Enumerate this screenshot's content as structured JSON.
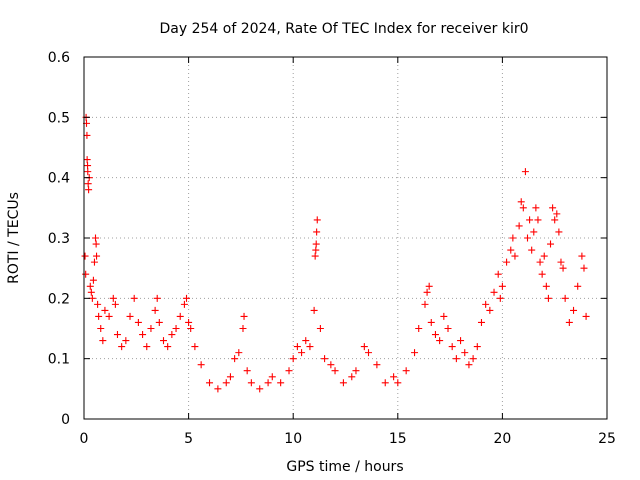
{
  "chart_data": {
    "type": "scatter",
    "title": "Day 254 of 2024, Rate Of TEC Index for receiver kir0",
    "xlabel": "GPS time / hours",
    "ylabel": "ROTI / TECUs",
    "xlim": [
      0,
      25
    ],
    "ylim": [
      0,
      0.6
    ],
    "xticks": [
      0,
      5,
      10,
      15,
      20,
      25
    ],
    "yticks": [
      0,
      0.1,
      0.2,
      0.3,
      0.4,
      0.5,
      0.6
    ],
    "xtick_labels": [
      "0",
      "5",
      "10",
      "15",
      "20",
      "25"
    ],
    "ytick_labels": [
      "0",
      "0.1",
      "0.2",
      "0.3",
      "0.4",
      "0.5",
      "0.6"
    ],
    "grid": true,
    "marker": "+",
    "color": "#ff0000",
    "series": [
      {
        "name": "ROTI",
        "points": [
          [
            0.05,
            0.27
          ],
          [
            0.08,
            0.24
          ],
          [
            0.1,
            0.5
          ],
          [
            0.12,
            0.49
          ],
          [
            0.14,
            0.47
          ],
          [
            0.15,
            0.43
          ],
          [
            0.17,
            0.42
          ],
          [
            0.18,
            0.41
          ],
          [
            0.2,
            0.39
          ],
          [
            0.22,
            0.38
          ],
          [
            0.25,
            0.4
          ],
          [
            0.3,
            0.22
          ],
          [
            0.35,
            0.21
          ],
          [
            0.4,
            0.2
          ],
          [
            0.45,
            0.23
          ],
          [
            0.5,
            0.26
          ],
          [
            0.55,
            0.3
          ],
          [
            0.58,
            0.29
          ],
          [
            0.6,
            0.27
          ],
          [
            0.65,
            0.19
          ],
          [
            0.7,
            0.17
          ],
          [
            0.8,
            0.15
          ],
          [
            0.9,
            0.13
          ],
          [
            1.0,
            0.18
          ],
          [
            1.2,
            0.17
          ],
          [
            1.4,
            0.2
          ],
          [
            1.5,
            0.19
          ],
          [
            1.6,
            0.14
          ],
          [
            1.8,
            0.12
          ],
          [
            2.0,
            0.13
          ],
          [
            2.2,
            0.17
          ],
          [
            2.4,
            0.2
          ],
          [
            2.6,
            0.16
          ],
          [
            2.8,
            0.14
          ],
          [
            3.0,
            0.12
          ],
          [
            3.2,
            0.15
          ],
          [
            3.4,
            0.18
          ],
          [
            3.5,
            0.2
          ],
          [
            3.6,
            0.16
          ],
          [
            3.8,
            0.13
          ],
          [
            4.0,
            0.12
          ],
          [
            4.2,
            0.14
          ],
          [
            4.4,
            0.15
          ],
          [
            4.6,
            0.17
          ],
          [
            4.8,
            0.19
          ],
          [
            4.9,
            0.2
          ],
          [
            5.0,
            0.16
          ],
          [
            5.1,
            0.15
          ],
          [
            5.3,
            0.12
          ],
          [
            5.6,
            0.09
          ],
          [
            6.0,
            0.06
          ],
          [
            6.4,
            0.05
          ],
          [
            6.8,
            0.06
          ],
          [
            7.0,
            0.07
          ],
          [
            7.2,
            0.1
          ],
          [
            7.4,
            0.11
          ],
          [
            7.6,
            0.15
          ],
          [
            7.65,
            0.17
          ],
          [
            7.8,
            0.08
          ],
          [
            8.0,
            0.06
          ],
          [
            8.4,
            0.05
          ],
          [
            8.8,
            0.06
          ],
          [
            9.0,
            0.07
          ],
          [
            9.4,
            0.06
          ],
          [
            9.8,
            0.08
          ],
          [
            10.0,
            0.1
          ],
          [
            10.2,
            0.12
          ],
          [
            10.4,
            0.11
          ],
          [
            10.6,
            0.13
          ],
          [
            10.8,
            0.12
          ],
          [
            11.0,
            0.18
          ],
          [
            11.05,
            0.27
          ],
          [
            11.08,
            0.28
          ],
          [
            11.1,
            0.29
          ],
          [
            11.12,
            0.31
          ],
          [
            11.15,
            0.33
          ],
          [
            11.3,
            0.15
          ],
          [
            11.5,
            0.1
          ],
          [
            11.8,
            0.09
          ],
          [
            12.0,
            0.08
          ],
          [
            12.4,
            0.06
          ],
          [
            12.8,
            0.07
          ],
          [
            13.0,
            0.08
          ],
          [
            13.4,
            0.12
          ],
          [
            13.6,
            0.11
          ],
          [
            14.0,
            0.09
          ],
          [
            14.4,
            0.06
          ],
          [
            14.8,
            0.07
          ],
          [
            15.0,
            0.06
          ],
          [
            15.4,
            0.08
          ],
          [
            15.8,
            0.11
          ],
          [
            16.0,
            0.15
          ],
          [
            16.3,
            0.19
          ],
          [
            16.4,
            0.21
          ],
          [
            16.5,
            0.22
          ],
          [
            16.6,
            0.16
          ],
          [
            16.8,
            0.14
          ],
          [
            17.0,
            0.13
          ],
          [
            17.2,
            0.17
          ],
          [
            17.4,
            0.15
          ],
          [
            17.6,
            0.12
          ],
          [
            17.8,
            0.1
          ],
          [
            18.0,
            0.13
          ],
          [
            18.2,
            0.11
          ],
          [
            18.4,
            0.09
          ],
          [
            18.6,
            0.1
          ],
          [
            18.8,
            0.12
          ],
          [
            19.0,
            0.16
          ],
          [
            19.2,
            0.19
          ],
          [
            19.4,
            0.18
          ],
          [
            19.6,
            0.21
          ],
          [
            19.8,
            0.24
          ],
          [
            19.9,
            0.2
          ],
          [
            20.0,
            0.22
          ],
          [
            20.2,
            0.26
          ],
          [
            20.4,
            0.28
          ],
          [
            20.5,
            0.3
          ],
          [
            20.6,
            0.27
          ],
          [
            20.8,
            0.32
          ],
          [
            20.9,
            0.36
          ],
          [
            21.0,
            0.35
          ],
          [
            21.1,
            0.41
          ],
          [
            21.2,
            0.3
          ],
          [
            21.3,
            0.33
          ],
          [
            21.4,
            0.28
          ],
          [
            21.5,
            0.31
          ],
          [
            21.6,
            0.35
          ],
          [
            21.7,
            0.33
          ],
          [
            21.8,
            0.26
          ],
          [
            21.9,
            0.24
          ],
          [
            22.0,
            0.27
          ],
          [
            22.1,
            0.22
          ],
          [
            22.2,
            0.2
          ],
          [
            22.3,
            0.29
          ],
          [
            22.4,
            0.35
          ],
          [
            22.5,
            0.33
          ],
          [
            22.6,
            0.34
          ],
          [
            22.7,
            0.31
          ],
          [
            22.8,
            0.26
          ],
          [
            22.9,
            0.25
          ],
          [
            23.0,
            0.2
          ],
          [
            23.2,
            0.16
          ],
          [
            23.4,
            0.18
          ],
          [
            23.6,
            0.22
          ],
          [
            23.8,
            0.27
          ],
          [
            23.9,
            0.25
          ],
          [
            24.0,
            0.17
          ]
        ]
      }
    ]
  }
}
